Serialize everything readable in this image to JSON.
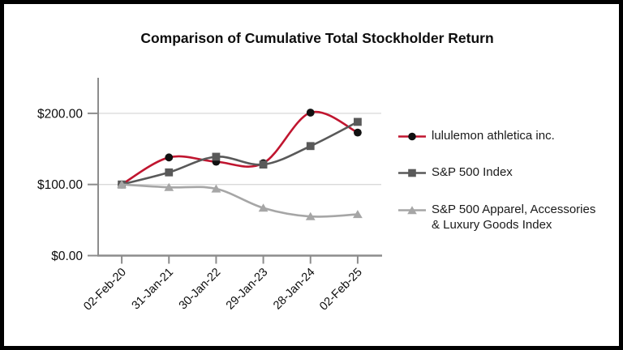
{
  "window": {
    "background": "#ffffff",
    "border_color": "#000000"
  },
  "chart_data": {
    "type": "line",
    "title": "Comparison of Cumulative Total Stockholder Return",
    "categories": [
      "02-Feb-20",
      "31-Jan-21",
      "30-Jan-22",
      "29-Jan-23",
      "28-Jan-24",
      "02-Feb-25"
    ],
    "x_label_rotation_deg": -45,
    "y_axis": {
      "tick_values": [
        0,
        100,
        200
      ],
      "tick_labels": [
        "$0.00",
        "$100.00",
        "$200.00"
      ],
      "min": 0,
      "max": 250
    },
    "grid": "horizontal",
    "gridline_color": "#d9d9d9",
    "axis_color": "#8c8c8c",
    "label_color": "#0d0d0d",
    "legend_position": "right",
    "series": [
      {
        "name": "lululemon athletica inc.",
        "values": [
          100,
          138,
          132,
          130,
          201,
          173
        ],
        "color": "#c0152f",
        "marker": "circle",
        "marker_color": "#111111",
        "smooth": true
      },
      {
        "name": "S&P 500 Index",
        "values": [
          100,
          117,
          139,
          128,
          154,
          188
        ],
        "color": "#595959",
        "marker": "square",
        "marker_color": "#595959",
        "smooth": true
      },
      {
        "name": "S&P 500 Apparel, Accessories & Luxury Goods Index",
        "values": [
          100,
          96,
          94,
          67,
          55,
          58
        ],
        "color": "#a6a6a6",
        "marker": "triangle",
        "marker_color": "#a6a6a6",
        "smooth": true
      }
    ]
  }
}
